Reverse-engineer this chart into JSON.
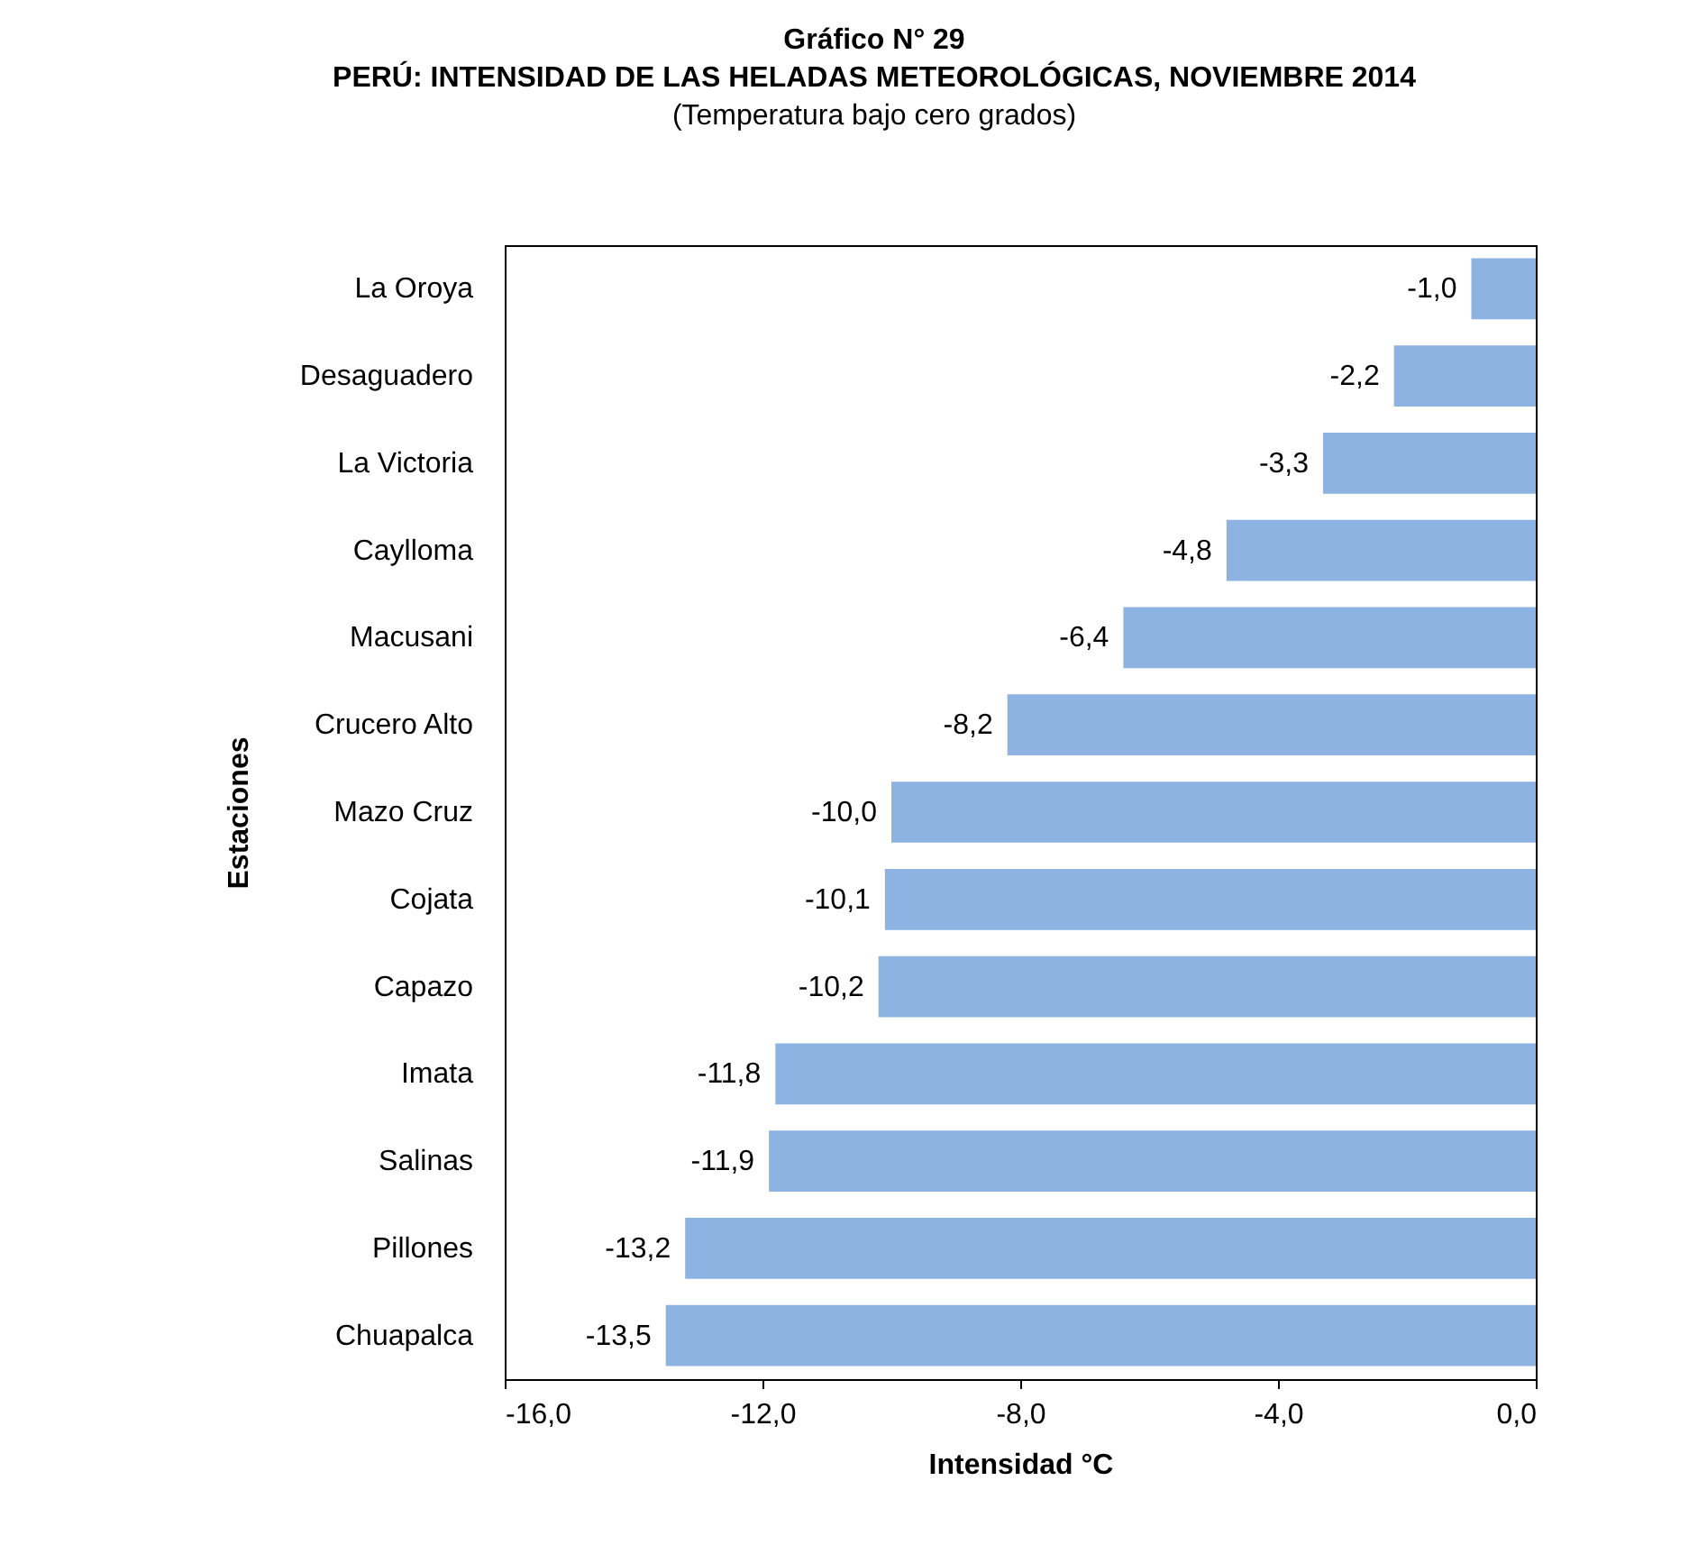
{
  "chart_data": {
    "type": "bar",
    "orientation": "horizontal",
    "title": "PERÚ: INTENSIDAD DE LAS HELADAS METEOROLÓGICAS, NOVIEMBRE 2014",
    "subtitle": "(Temperatura bajo cero grados)",
    "annotations": [
      "Gráfico N° 29"
    ],
    "xlabel": "Intensidad °C",
    "ylabel": "Estaciones",
    "categories": [
      "La Oroya",
      "Desaguadero",
      "La Victoria",
      "Caylloma",
      "Macusani",
      "Crucero Alto",
      "Mazo Cruz",
      "Cojata",
      "Capazo",
      "Imata",
      "Salinas",
      "Pillones",
      "Chuapalca"
    ],
    "values": [
      -1.0,
      -2.2,
      -3.3,
      -4.8,
      -6.4,
      -8.2,
      -10.0,
      -10.1,
      -10.2,
      -11.8,
      -11.9,
      -13.2,
      -13.5
    ],
    "value_labels": [
      "-1,0",
      "-2,2",
      "-3,3",
      "-4,8",
      "-6,4",
      "-8,2",
      "-10,0",
      "-10,1",
      "-10,2",
      "-11,8",
      "-11,9",
      "-13,2",
      "-13,5"
    ],
    "color": "#8db3e2",
    "xlim": [
      -16,
      0
    ],
    "xticks": [
      {
        "value": -16,
        "label": "-16,0"
      },
      {
        "value": -12,
        "label": "-12,0"
      },
      {
        "value": -8,
        "label": "-8,0"
      },
      {
        "value": -4,
        "label": "-4,0"
      },
      {
        "value": 0,
        "label": "0,0"
      }
    ],
    "grid": false
  }
}
